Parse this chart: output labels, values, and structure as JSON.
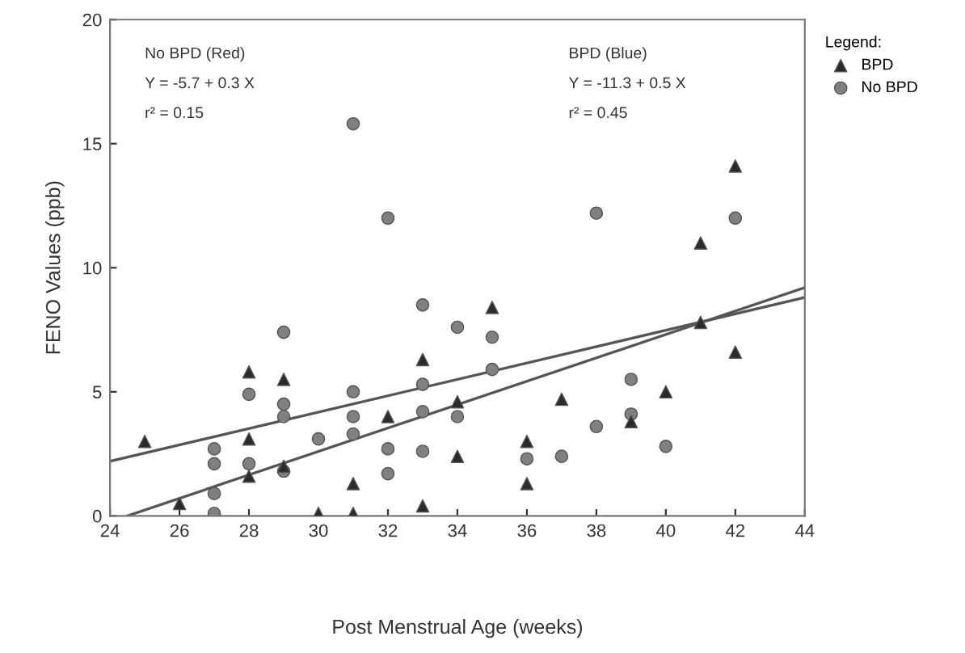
{
  "chart_data": {
    "type": "scatter",
    "xlabel": "Post Menstrual Age (weeks)",
    "ylabel": "FENO Values (ppb)",
    "legend_title": "Legend:",
    "legend": "top right",
    "grid": false,
    "xlim": [
      24,
      44
    ],
    "xticks": [
      24,
      26,
      28,
      30,
      32,
      34,
      36,
      38,
      40,
      42,
      44
    ],
    "ylim": [
      0,
      20
    ],
    "yticks": [
      0,
      5,
      10,
      15,
      20
    ],
    "annotations": [
      "No BPD (Red)",
      "Y = -5.7 + 0.3 X",
      "r² = 0.15",
      "BPD (Blue)",
      "Y = -11.3 + 0.5 X",
      "r² = 0.45"
    ],
    "series": [
      {
        "name": "BPD",
        "marker": "triangle",
        "color": "#2b2b2b",
        "x": [
          25,
          26,
          28,
          28,
          28,
          29,
          29,
          30,
          31,
          31,
          32,
          33,
          33,
          34,
          34,
          35,
          36,
          36,
          37,
          39,
          40,
          41,
          41,
          42,
          42
        ],
        "values": [
          3.0,
          0.5,
          5.8,
          3.1,
          1.6,
          5.5,
          2.0,
          0.1,
          1.3,
          0.1,
          4.0,
          6.3,
          0.4,
          4.6,
          2.4,
          8.4,
          3.0,
          1.3,
          4.7,
          3.8,
          5.0,
          11.0,
          7.8,
          14.1,
          6.6
        ]
      },
      {
        "name": "No BPD",
        "marker": "circle",
        "color": "#808080",
        "x": [
          27,
          27,
          27,
          27,
          28,
          28,
          29,
          29,
          29,
          29,
          30,
          31,
          31,
          31,
          31,
          32,
          32,
          32,
          33,
          33,
          33,
          33,
          34,
          34,
          35,
          35,
          36,
          37,
          38,
          38,
          39,
          39,
          40,
          42
        ],
        "values": [
          2.7,
          2.1,
          0.9,
          0.1,
          4.9,
          2.1,
          7.4,
          4.5,
          4.0,
          1.8,
          3.1,
          15.8,
          5.0,
          4.0,
          3.3,
          12.0,
          2.7,
          1.7,
          8.5,
          5.3,
          4.2,
          2.6,
          7.6,
          4.0,
          7.2,
          5.9,
          2.3,
          2.4,
          12.2,
          3.6,
          5.5,
          4.1,
          2.8,
          12.0
        ]
      },
      {
        "type": "line",
        "marker": "none",
        "line_style": "solid",
        "color": "#555555",
        "x": [
          24,
          44
        ],
        "values": [
          2.2,
          8.8
        ]
      },
      {
        "type": "line",
        "marker": "none",
        "line_style": "solid",
        "color": "#555555",
        "x": [
          24.5,
          44
        ],
        "values": [
          0,
          9.2
        ]
      }
    ]
  }
}
